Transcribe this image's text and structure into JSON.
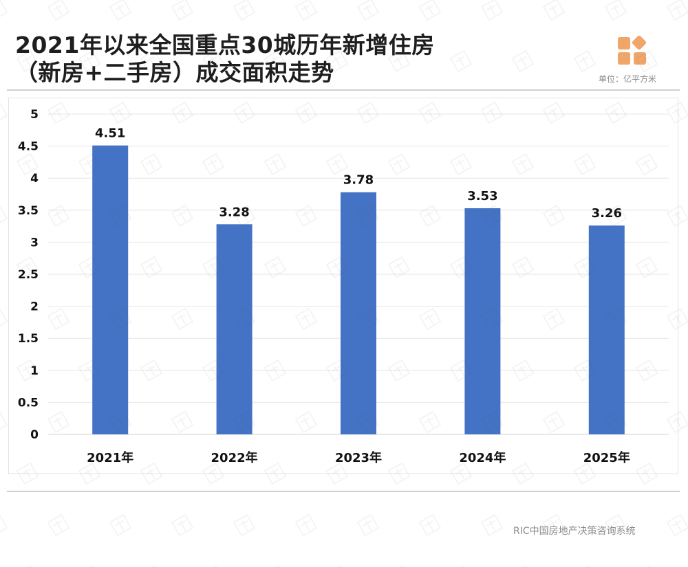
{
  "header": {
    "title_line1": "2021年以来全国重点30城历年新增住房",
    "title_line2": "（新房+二手房）成交面积走势",
    "unit": "单位：亿平方米"
  },
  "footer": {
    "source": "RIC中国房地产决策咨询系统"
  },
  "colors": {
    "bar": "#4472C4",
    "logo": "#F0A569",
    "grid": "#e6e6e6"
  },
  "chart_data": {
    "type": "bar",
    "title": "2021年以来全国重点30城历年新增住房（新房+二手房）成交面积走势",
    "categories": [
      "2021年",
      "2022年",
      "2023年",
      "2024年",
      "2025年"
    ],
    "values": [
      4.51,
      3.28,
      3.78,
      3.53,
      3.26
    ],
    "data_labels": [
      "4.51",
      "3.28",
      "3.78",
      "3.53",
      "3.26"
    ],
    "yticks": [
      "0",
      "0.5",
      "1",
      "1.5",
      "2",
      "2.5",
      "3",
      "3.5",
      "4",
      "4.5",
      "5"
    ],
    "ylim": [
      0,
      5
    ],
    "grid": true,
    "legend": "none",
    "xlabel": "",
    "ylabel": ""
  }
}
